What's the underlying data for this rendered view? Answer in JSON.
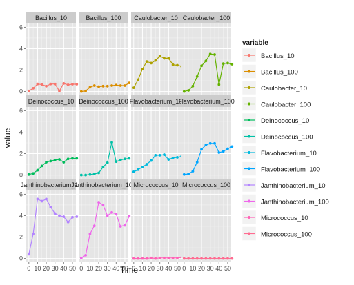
{
  "chart_data": {
    "type": "line",
    "facet_layout": "wrap-4-columns",
    "xlabel": "Time",
    "ylabel": "value",
    "x_ticks": [
      0,
      10,
      20,
      30,
      40,
      50
    ],
    "y_ticks": [
      0,
      2,
      4,
      6
    ],
    "xlim": [
      -3,
      54
    ],
    "ylim": [
      -0.35,
      6.35
    ],
    "grid": true,
    "error_bars": true,
    "legend": {
      "title": "variable",
      "position": "right"
    },
    "series": [
      {
        "name": "Bacillus_10",
        "color": "#F8766D",
        "points": [
          [
            0,
            0.05
          ],
          [
            5,
            0.3
          ],
          [
            10,
            0.7
          ],
          [
            15,
            0.65
          ],
          [
            20,
            0.5
          ],
          [
            25,
            0.7
          ],
          [
            30,
            0.7
          ],
          [
            35,
            0.05
          ],
          [
            40,
            0.75
          ],
          [
            45,
            0.62
          ],
          [
            50,
            0.68
          ],
          [
            55,
            0.68
          ]
        ]
      },
      {
        "name": "Bacillus_100",
        "color": "#DB8E00",
        "points": [
          [
            0,
            0.0
          ],
          [
            5,
            0.05
          ],
          [
            10,
            0.4
          ],
          [
            15,
            0.55
          ],
          [
            20,
            0.45
          ],
          [
            25,
            0.5
          ],
          [
            30,
            0.5
          ],
          [
            35,
            0.55
          ],
          [
            40,
            0.6
          ],
          [
            45,
            0.55
          ],
          [
            50,
            0.55
          ],
          [
            55,
            0.8
          ]
        ]
      },
      {
        "name": "Caulobacter_10",
        "color": "#AEA200",
        "points": [
          [
            0,
            0.35
          ],
          [
            5,
            1.1
          ],
          [
            10,
            2.1
          ],
          [
            15,
            2.8
          ],
          [
            20,
            2.65
          ],
          [
            25,
            2.9
          ],
          [
            30,
            3.3
          ],
          [
            35,
            3.1
          ],
          [
            40,
            3.1
          ],
          [
            45,
            2.5
          ],
          [
            50,
            2.45
          ],
          [
            55,
            2.35
          ]
        ]
      },
      {
        "name": "Caulobacter_100",
        "color": "#64B200",
        "points": [
          [
            0,
            0.0
          ],
          [
            5,
            0.1
          ],
          [
            10,
            0.5
          ],
          [
            15,
            1.4
          ],
          [
            20,
            2.4
          ],
          [
            25,
            2.85
          ],
          [
            30,
            3.5
          ],
          [
            35,
            3.45
          ],
          [
            40,
            0.65
          ],
          [
            45,
            2.6
          ],
          [
            50,
            2.65
          ],
          [
            55,
            2.55
          ]
        ]
      },
      {
        "name": "Deinococcus_10",
        "color": "#00BD5C",
        "points": [
          [
            0,
            0.05
          ],
          [
            5,
            0.15
          ],
          [
            10,
            0.45
          ],
          [
            15,
            0.85
          ],
          [
            20,
            1.2
          ],
          [
            25,
            1.3
          ],
          [
            30,
            1.4
          ],
          [
            35,
            1.45
          ],
          [
            40,
            1.2
          ],
          [
            45,
            1.5
          ],
          [
            50,
            1.55
          ],
          [
            55,
            1.55
          ]
        ]
      },
      {
        "name": "Deinococcus_100",
        "color": "#00C1A7",
        "points": [
          [
            0,
            0.0
          ],
          [
            5,
            0.0
          ],
          [
            10,
            0.05
          ],
          [
            15,
            0.1
          ],
          [
            20,
            0.2
          ],
          [
            25,
            0.75
          ],
          [
            30,
            1.15
          ],
          [
            35,
            3.05
          ],
          [
            40,
            1.25
          ],
          [
            45,
            1.4
          ],
          [
            50,
            1.5
          ],
          [
            55,
            1.55
          ]
        ]
      },
      {
        "name": "Flavobacterium_10",
        "color": "#00BADE",
        "points": [
          [
            0,
            0.3
          ],
          [
            5,
            0.5
          ],
          [
            10,
            0.75
          ],
          [
            15,
            1.0
          ],
          [
            20,
            1.35
          ],
          [
            25,
            1.85
          ],
          [
            30,
            1.85
          ],
          [
            35,
            1.9
          ],
          [
            40,
            1.45
          ],
          [
            45,
            1.6
          ],
          [
            50,
            1.65
          ],
          [
            55,
            1.75
          ]
        ]
      },
      {
        "name": "Flavobacterium_100",
        "color": "#00A6FF",
        "points": [
          [
            0,
            0.05
          ],
          [
            5,
            0.1
          ],
          [
            10,
            0.35
          ],
          [
            15,
            1.2
          ],
          [
            20,
            2.4
          ],
          [
            25,
            2.8
          ],
          [
            30,
            2.95
          ],
          [
            35,
            2.95
          ],
          [
            40,
            2.1
          ],
          [
            45,
            2.2
          ],
          [
            50,
            2.45
          ],
          [
            55,
            2.65
          ]
        ]
      },
      {
        "name": "Janthinobacterium_10",
        "color": "#B385FF",
        "points": [
          [
            0,
            0.4
          ],
          [
            5,
            2.3
          ],
          [
            10,
            5.55
          ],
          [
            15,
            5.35
          ],
          [
            20,
            5.55
          ],
          [
            25,
            4.8
          ],
          [
            30,
            4.2
          ],
          [
            35,
            4.0
          ],
          [
            40,
            3.9
          ],
          [
            45,
            3.4
          ],
          [
            50,
            3.85
          ],
          [
            55,
            3.9
          ]
        ]
      },
      {
        "name": "Janthinobacterium_100",
        "color": "#EF67EB",
        "points": [
          [
            0,
            0.05
          ],
          [
            5,
            0.3
          ],
          [
            10,
            2.3
          ],
          [
            15,
            3.05
          ],
          [
            20,
            5.25
          ],
          [
            25,
            5.0
          ],
          [
            30,
            4.0
          ],
          [
            35,
            4.3
          ],
          [
            40,
            4.15
          ],
          [
            45,
            3.0
          ],
          [
            50,
            3.1
          ],
          [
            55,
            3.95
          ]
        ]
      },
      {
        "name": "Micrococcus_10",
        "color": "#FF63B6",
        "points": [
          [
            0,
            0.0
          ],
          [
            5,
            0.0
          ],
          [
            10,
            0.0
          ],
          [
            15,
            0.0
          ],
          [
            20,
            0.05
          ],
          [
            25,
            0.0
          ],
          [
            30,
            0.05
          ],
          [
            35,
            0.05
          ],
          [
            40,
            0.05
          ],
          [
            45,
            0.05
          ],
          [
            50,
            0.05
          ],
          [
            55,
            0.1
          ]
        ]
      },
      {
        "name": "Micrococcus_100",
        "color": "#FF6C91",
        "points": [
          [
            0,
            0.0
          ],
          [
            5,
            0.0
          ],
          [
            10,
            0.0
          ],
          [
            15,
            0.0
          ],
          [
            20,
            0.0
          ],
          [
            25,
            0.0
          ],
          [
            30,
            0.0
          ],
          [
            35,
            0.0
          ],
          [
            40,
            0.0
          ],
          [
            45,
            0.0
          ],
          [
            50,
            0.0
          ],
          [
            55,
            0.0
          ]
        ]
      }
    ]
  }
}
